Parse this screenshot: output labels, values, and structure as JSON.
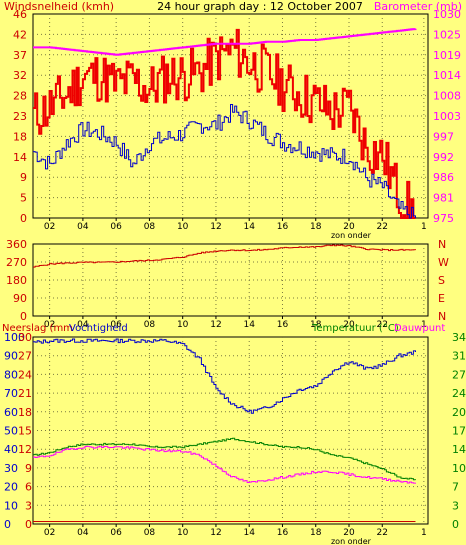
{
  "colors": {
    "background": "#ffff80",
    "wind_avg": "#0000cc",
    "wind_gust": "#ee0000",
    "barometer": "#ff00ff",
    "wind_dir": "#cc0000",
    "humidity": "#0000cc",
    "temperature": "#008000",
    "dewpoint": "#ff00ff",
    "rain": "#cc0000",
    "frame": "#000000",
    "left_label": "#cc0000",
    "right_label": "#ff00ff",
    "temp_axis": "#008000"
  },
  "chart_data": [
    {
      "type": "line",
      "title": "24 hour graph day : 12 October 2007",
      "ylabel_left": "Windsnelheid (kmh)",
      "ylabel_right": "Barometer (mb)",
      "x_ticks": [
        "02",
        "04",
        "06",
        "08",
        "10",
        "12",
        "14",
        "16",
        "18",
        "20",
        "22"
      ],
      "x_end_tick": "1",
      "x_sublabel": "zon onder",
      "ylim_left": [
        0,
        46
      ],
      "y_ticks_left": [
        "46",
        "42",
        "37",
        "32",
        "28",
        "23",
        "18",
        "14",
        "9",
        "5",
        "0"
      ],
      "ylim_right": [
        975,
        1030
      ],
      "y_ticks_right": [
        "1030",
        "1025",
        "1019",
        "1014",
        "1008",
        "1003",
        "997",
        "992",
        "986",
        "981",
        "975"
      ],
      "x_hours": [
        0,
        1,
        2,
        3,
        4,
        5,
        6,
        7,
        8,
        9,
        10,
        11,
        12,
        13,
        14,
        15,
        16,
        17,
        18,
        19,
        20,
        21,
        22,
        23
      ],
      "series": [
        {
          "name": "gust",
          "values": [
            23,
            25,
            28,
            32,
            32,
            30,
            31,
            29,
            32,
            32,
            33,
            36,
            38,
            35,
            33,
            30,
            28,
            26,
            24,
            25,
            16,
            14,
            5,
            0
          ]
        },
        {
          "name": "avg",
          "values": [
            15,
            12,
            17,
            20,
            19,
            17,
            12,
            17,
            18,
            19,
            21,
            21,
            24,
            22,
            19,
            17,
            16,
            15,
            14,
            14,
            9,
            7,
            2,
            0
          ]
        },
        {
          "name": "barometer",
          "values": [
            1021,
            1021,
            1020.5,
            1020,
            1019.5,
            1019,
            1019.5,
            1020,
            1020.5,
            1021,
            1021.5,
            1022,
            1022,
            1022,
            1022.5,
            1022.5,
            1023,
            1023,
            1023.5,
            1024,
            1024.5,
            1025,
            1025.5,
            1026
          ]
        }
      ]
    },
    {
      "type": "line",
      "y_ticks_left": [
        "360",
        "270",
        "180",
        "90",
        "0"
      ],
      "y_ticks_right": [
        "N",
        "W",
        "S",
        "E",
        "N"
      ],
      "ylim": [
        0,
        360
      ],
      "x_ticks": [
        "02",
        "04",
        "06",
        "08",
        "10",
        "12",
        "14",
        "16",
        "18",
        "20",
        "22"
      ],
      "x_end_tick": "1",
      "x_hours": [
        0,
        1,
        2,
        3,
        4,
        5,
        6,
        7,
        8,
        9,
        10,
        11,
        12,
        13,
        14,
        15,
        16,
        17,
        18,
        19,
        20,
        21,
        22,
        23
      ],
      "series": [
        {
          "name": "wind direction",
          "values": [
            245,
            260,
            265,
            268,
            268,
            270,
            275,
            278,
            285,
            295,
            315,
            325,
            330,
            328,
            332,
            340,
            345,
            345,
            355,
            350,
            335,
            330,
            330,
            330
          ]
        }
      ]
    },
    {
      "type": "line",
      "ylabel_left": "Neerslag (mm",
      "ylabel_left2": "Vochtigheid",
      "ylabel_right": "Temperatuur (°C)",
      "ylabel_right2": "Dauwpunt",
      "y_ticks_left_rain": [
        "30",
        "27",
        "24",
        "21",
        "18",
        "15",
        "12",
        "9",
        "6",
        "3",
        "0"
      ],
      "y_ticks_left_hum": [
        "100",
        "90",
        "80",
        "70",
        "60",
        "50",
        "40",
        "30",
        "20",
        "10",
        "0"
      ],
      "y_ticks_right": [
        "34",
        "31",
        "27",
        "24",
        "20",
        "17",
        "14",
        "10",
        "7",
        "3",
        "0"
      ],
      "ylim_rain": [
        0,
        30
      ],
      "ylim_hum": [
        0,
        100
      ],
      "ylim_temp": [
        0,
        34
      ],
      "x_ticks": [
        "02",
        "04",
        "06",
        "08",
        "10",
        "12",
        "14",
        "16",
        "18",
        "20",
        "22"
      ],
      "x_end_tick": "1",
      "x_sublabel": "zon onder",
      "x_hours": [
        0,
        1,
        2,
        3,
        4,
        5,
        6,
        7,
        8,
        9,
        10,
        11,
        12,
        13,
        14,
        15,
        16,
        17,
        18,
        19,
        20,
        21,
        22,
        23
      ],
      "series": [
        {
          "name": "humidity",
          "values": [
            97,
            98,
            98,
            98,
            98,
            98,
            98,
            98,
            98,
            96,
            88,
            72,
            64,
            60,
            62,
            67,
            72,
            74,
            82,
            87,
            83,
            85,
            90,
            92
          ]
        },
        {
          "name": "temperature",
          "values": [
            12.5,
            13,
            14,
            14.5,
            14.5,
            14.5,
            14.5,
            14,
            14,
            14,
            14.5,
            15,
            15.5,
            15,
            14.5,
            14,
            14,
            13.5,
            12.5,
            12,
            11,
            10,
            8.5,
            8
          ]
        },
        {
          "name": "dewpoint",
          "values": [
            12,
            12.5,
            13.5,
            14,
            14,
            14,
            13.8,
            13.5,
            13.3,
            13.2,
            12.5,
            10.5,
            8.5,
            7.5,
            8,
            8.5,
            9,
            9.5,
            9.5,
            9,
            8.5,
            8.2,
            7.8,
            7.5
          ]
        },
        {
          "name": "rain",
          "values": [
            0,
            0,
            0,
            0,
            0,
            0,
            0,
            0,
            0,
            0,
            0,
            0,
            0,
            0,
            0,
            0,
            0,
            0,
            0,
            0,
            0,
            0,
            0,
            0
          ]
        }
      ]
    }
  ]
}
